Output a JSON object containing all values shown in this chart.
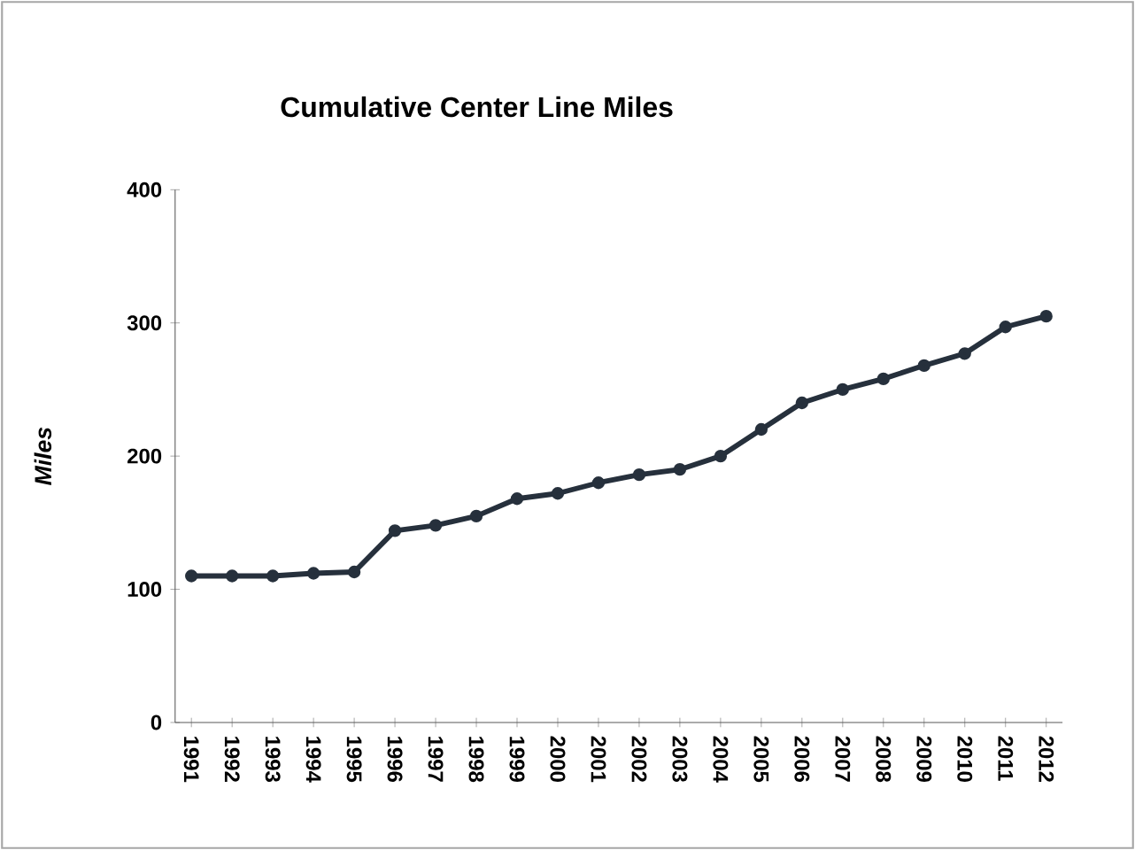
{
  "chart_data": {
    "type": "line",
    "title": "Cumulative Center Line Miles",
    "ylabel": "*Miles*",
    "categories": [
      "1991",
      "1992",
      "1993",
      "1994",
      "1995",
      "1996",
      "1997",
      "1998",
      "1999",
      "2000",
      "2001",
      "2002",
      "2003",
      "2004",
      "2005",
      "2006",
      "2007",
      "2008",
      "2009",
      "2010",
      "2011",
      "2012"
    ],
    "series": [
      {
        "color": "#26303c",
        "values": [
          110,
          110,
          110,
          112,
          113,
          144,
          148,
          155,
          168,
          172,
          180,
          186,
          190,
          200,
          220,
          240,
          250,
          258,
          268,
          277,
          297,
          305
        ]
      }
    ],
    "ylim": [
      0,
      400
    ],
    "yticks": [
      0,
      100,
      200,
      300,
      400
    ],
    "marker": "circle"
  }
}
